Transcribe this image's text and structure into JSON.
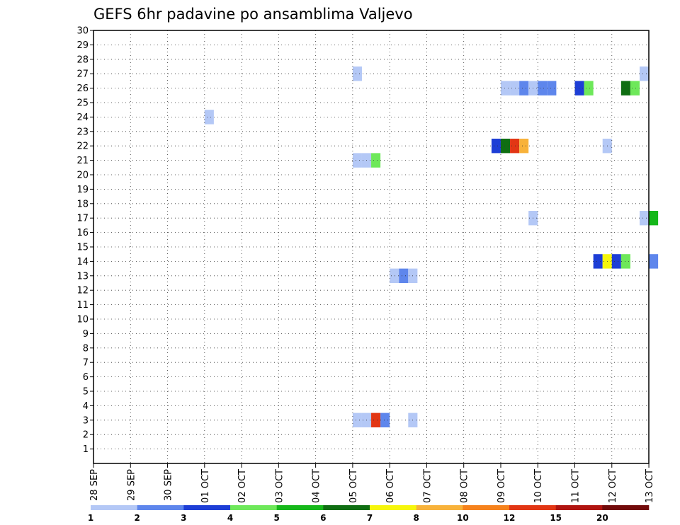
{
  "chart_data": {
    "type": "heatmap",
    "title": "GEFS 6hr padavine po ansamblima Valjevo",
    "y_ticks": [
      1,
      2,
      3,
      4,
      5,
      6,
      7,
      8,
      9,
      10,
      11,
      12,
      13,
      14,
      15,
      16,
      17,
      18,
      19,
      20,
      21,
      22,
      23,
      24,
      25,
      26,
      27,
      28,
      29,
      30
    ],
    "x_tick_labels": [
      "28 SEP",
      "29 SEP",
      "30 SEP",
      "01 OCT",
      "02 OCT",
      "03 OCT",
      "04 OCT",
      "05 OCT",
      "06 OCT",
      "07 OCT",
      "08 OCT",
      "09 OCT",
      "10 OCT",
      "11 OCT",
      "12 OCT",
      "13 OCT"
    ],
    "steps_per_day": 4,
    "grid": true,
    "legend": {
      "position": "bottom",
      "colors": [
        "#b4c8f6",
        "#5e86ec",
        "#1d3ed6",
        "#6ee85a",
        "#16b81a",
        "#0f6e12",
        "#f6f60c",
        "#f8b23a",
        "#f6821c",
        "#e23614",
        "#b01410",
        "#720a0a"
      ],
      "labels": [
        "1",
        "2",
        "3",
        "4",
        "5",
        "6",
        "7",
        "8",
        "10",
        "12",
        "15",
        "20"
      ]
    },
    "cells": [
      {
        "member": 28,
        "step": 28,
        "color": "#b4c8f6"
      },
      {
        "member": 25,
        "step": 12,
        "color": "#b4c8f6"
      },
      {
        "member": 22,
        "step": 28,
        "color": "#b4c8f6"
      },
      {
        "member": 22,
        "step": 29,
        "color": "#b4c8f6"
      },
      {
        "member": 22,
        "step": 30,
        "color": "#6ee85a"
      },
      {
        "member": 14,
        "step": 32,
        "color": "#b4c8f6"
      },
      {
        "member": 14,
        "step": 33,
        "color": "#5e86ec"
      },
      {
        "member": 14,
        "step": 34,
        "color": "#b4c8f6"
      },
      {
        "member": 4,
        "step": 28,
        "color": "#b4c8f6"
      },
      {
        "member": 4,
        "step": 29,
        "color": "#b4c8f6"
      },
      {
        "member": 4,
        "step": 30,
        "color": "#e23614"
      },
      {
        "member": 4,
        "step": 31,
        "color": "#5e86ec"
      },
      {
        "member": 4,
        "step": 34,
        "color": "#b4c8f6"
      },
      {
        "member": 27,
        "step": 44,
        "color": "#b4c8f6"
      },
      {
        "member": 27,
        "step": 45,
        "color": "#b4c8f6"
      },
      {
        "member": 27,
        "step": 46,
        "color": "#5e86ec"
      },
      {
        "member": 27,
        "step": 47,
        "color": "#b4c8f6"
      },
      {
        "member": 27,
        "step": 48,
        "color": "#5e86ec"
      },
      {
        "member": 27,
        "step": 49,
        "color": "#5e86ec"
      },
      {
        "member": 27,
        "step": 52,
        "color": "#1d3ed6"
      },
      {
        "member": 27,
        "step": 53,
        "color": "#6ee85a"
      },
      {
        "member": 27,
        "step": 57,
        "color": "#0f6e12"
      },
      {
        "member": 27,
        "step": 58,
        "color": "#6ee85a"
      },
      {
        "member": 28,
        "step": 59,
        "color": "#b4c8f6"
      },
      {
        "member": 23,
        "step": 43,
        "color": "#1d3ed6"
      },
      {
        "member": 23,
        "step": 44,
        "color": "#0f6e12"
      },
      {
        "member": 23,
        "step": 45,
        "color": "#e23614"
      },
      {
        "member": 23,
        "step": 46,
        "color": "#f8b23a"
      },
      {
        "member": 23,
        "step": 55,
        "color": "#b4c8f6"
      },
      {
        "member": 18,
        "step": 47,
        "color": "#b4c8f6"
      },
      {
        "member": 18,
        "step": 59,
        "color": "#b4c8f6"
      },
      {
        "member": 18,
        "step": 60,
        "color": "#16b81a"
      },
      {
        "member": 15,
        "step": 54,
        "color": "#1d3ed6"
      },
      {
        "member": 15,
        "step": 55,
        "color": "#f6f60c"
      },
      {
        "member": 15,
        "step": 56,
        "color": "#1d3ed6"
      },
      {
        "member": 15,
        "step": 57,
        "color": "#6ee85a"
      },
      {
        "member": 15,
        "step": 60,
        "color": "#5e86ec"
      }
    ]
  }
}
